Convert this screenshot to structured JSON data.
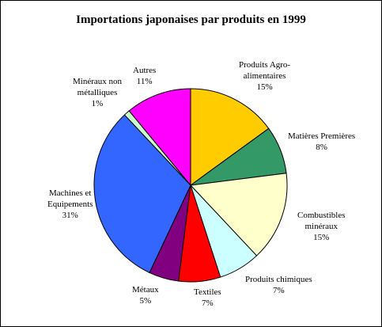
{
  "chart_data": {
    "type": "pie",
    "title": "Importations japonaises par produits en 1999",
    "slices": [
      {
        "name": "Produits Agro-alimentaires",
        "label_lines": [
          "Produits Agro-",
          "alimentaires"
        ],
        "value": 15,
        "pct_label": "15%",
        "color": "#FFCC00"
      },
      {
        "name": "Matières Premières",
        "label_lines": [
          "Matières Premières"
        ],
        "value": 8,
        "pct_label": "8%",
        "color": "#339966"
      },
      {
        "name": "Combustibles minéraux",
        "label_lines": [
          "Combustibles",
          "minéraux"
        ],
        "value": 15,
        "pct_label": "15%",
        "color": "#FFFFCC"
      },
      {
        "name": "Produits chimiques",
        "label_lines": [
          "Produits chimiques"
        ],
        "value": 7,
        "pct_label": "7%",
        "color": "#CCFFFF"
      },
      {
        "name": "Textiles",
        "label_lines": [
          "Textiles"
        ],
        "value": 7,
        "pct_label": "7%",
        "color": "#FF0000"
      },
      {
        "name": "Métaux",
        "label_lines": [
          "Métaux"
        ],
        "value": 5,
        "pct_label": "5%",
        "color": "#800080"
      },
      {
        "name": "Machines et Equipements",
        "label_lines": [
          "Machines et",
          "Equipements"
        ],
        "value": 31,
        "pct_label": "31%",
        "color": "#3366FF"
      },
      {
        "name": "Minéraux non métalliques",
        "label_lines": [
          "Minéraux non",
          "métalliques"
        ],
        "value": 1,
        "pct_label": "1%",
        "color": "#CCFFCC"
      },
      {
        "name": "Autres",
        "label_lines": [
          "Autres"
        ],
        "value": 11,
        "pct_label": "11%",
        "color": "#FF00FF"
      }
    ],
    "start_angle_deg": 0,
    "direction": "clockwise",
    "legend": "none"
  }
}
